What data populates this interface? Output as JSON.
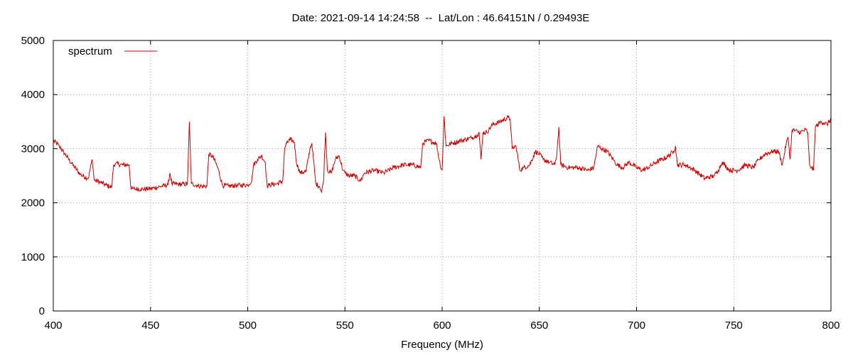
{
  "chart_data": {
    "type": "line",
    "title": "Date: 2021-09-14 14:24:58  --  Lat/Lon : 46.64151N / 0.29493E",
    "xlabel": "Frequency (MHz)",
    "ylabel": "",
    "xlim": [
      400,
      800
    ],
    "ylim": [
      0,
      5000
    ],
    "xticks": [
      400,
      450,
      500,
      550,
      600,
      650,
      700,
      750,
      800
    ],
    "yticks": [
      0,
      1000,
      2000,
      3000,
      4000,
      5000
    ],
    "grid": true,
    "legend": "top-left",
    "colors": {
      "series": "#cc0000",
      "grid": "#a0a0a0"
    },
    "series": [
      {
        "name": "spectrum",
        "x": [
          400,
          403,
          406,
          410,
          414,
          418,
          420,
          421,
          424,
          427,
          430,
          431,
          432,
          436,
          439,
          440,
          441,
          445,
          450,
          455,
          459,
          460,
          461,
          465,
          469,
          470,
          471,
          474,
          477,
          479,
          480,
          482,
          484,
          485,
          487,
          490,
          495,
          500,
          502,
          503,
          505,
          507,
          509,
          510,
          511,
          515,
          518,
          519,
          520,
          522,
          524,
          525,
          527,
          530,
          532,
          533,
          535,
          537,
          538,
          539,
          540,
          541,
          543,
          545,
          547,
          549,
          550,
          552,
          555,
          558,
          560,
          565,
          570,
          575,
          580,
          585,
          589,
          590,
          593,
          597,
          599,
          600,
          601,
          602,
          605,
          610,
          615,
          618,
          619,
          620,
          621,
          623,
          626,
          630,
          634,
          635,
          636,
          638,
          640,
          642,
          645,
          648,
          650,
          652,
          655,
          658,
          659,
          660,
          661,
          665,
          670,
          675,
          678,
          680,
          682,
          685,
          688,
          690,
          693,
          696,
          700,
          703,
          706,
          710,
          713,
          716,
          719,
          720,
          721,
          725,
          730,
          735,
          740,
          742,
          744,
          748,
          752,
          756,
          760,
          763,
          766,
          770,
          773,
          775,
          777,
          778,
          779,
          780,
          784,
          787,
          788,
          789,
          790,
          791,
          792,
          795,
          798,
          800
        ],
        "values": [
          3150,
          3050,
          2900,
          2700,
          2520,
          2450,
          2800,
          2420,
          2380,
          2330,
          2280,
          2700,
          2720,
          2700,
          2700,
          2250,
          2260,
          2250,
          2260,
          2300,
          2330,
          2550,
          2350,
          2340,
          2350,
          3500,
          2350,
          2320,
          2300,
          2310,
          2900,
          2850,
          2700,
          2600,
          2320,
          2310,
          2320,
          2330,
          2400,
          2700,
          2800,
          2870,
          2750,
          2300,
          2330,
          2350,
          2400,
          3000,
          3100,
          3170,
          3120,
          2750,
          2550,
          2580,
          3000,
          3100,
          2350,
          2300,
          2200,
          2400,
          3300,
          2600,
          2550,
          2800,
          2870,
          2600,
          2550,
          2500,
          2500,
          2400,
          2550,
          2600,
          2550,
          2650,
          2700,
          2700,
          2650,
          3100,
          3150,
          3100,
          2700,
          2600,
          3600,
          3050,
          3100,
          3150,
          3200,
          3250,
          3300,
          2800,
          3300,
          3300,
          3450,
          3500,
          3580,
          3550,
          3000,
          3050,
          2600,
          2650,
          2700,
          2950,
          2900,
          2800,
          2750,
          2700,
          2900,
          3400,
          2700,
          2650,
          2650,
          2600,
          2650,
          3050,
          3000,
          2950,
          2800,
          2700,
          2650,
          2750,
          2650,
          2600,
          2650,
          2750,
          2800,
          2850,
          2950,
          3050,
          2700,
          2700,
          2600,
          2450,
          2500,
          2600,
          2750,
          2600,
          2600,
          2700,
          2650,
          2800,
          2900,
          2950,
          2950,
          2700,
          3100,
          3200,
          2800,
          3350,
          3300,
          3350,
          3300,
          2700,
          2650,
          2600,
          3400,
          3500,
          3450,
          3550
        ]
      }
    ]
  }
}
